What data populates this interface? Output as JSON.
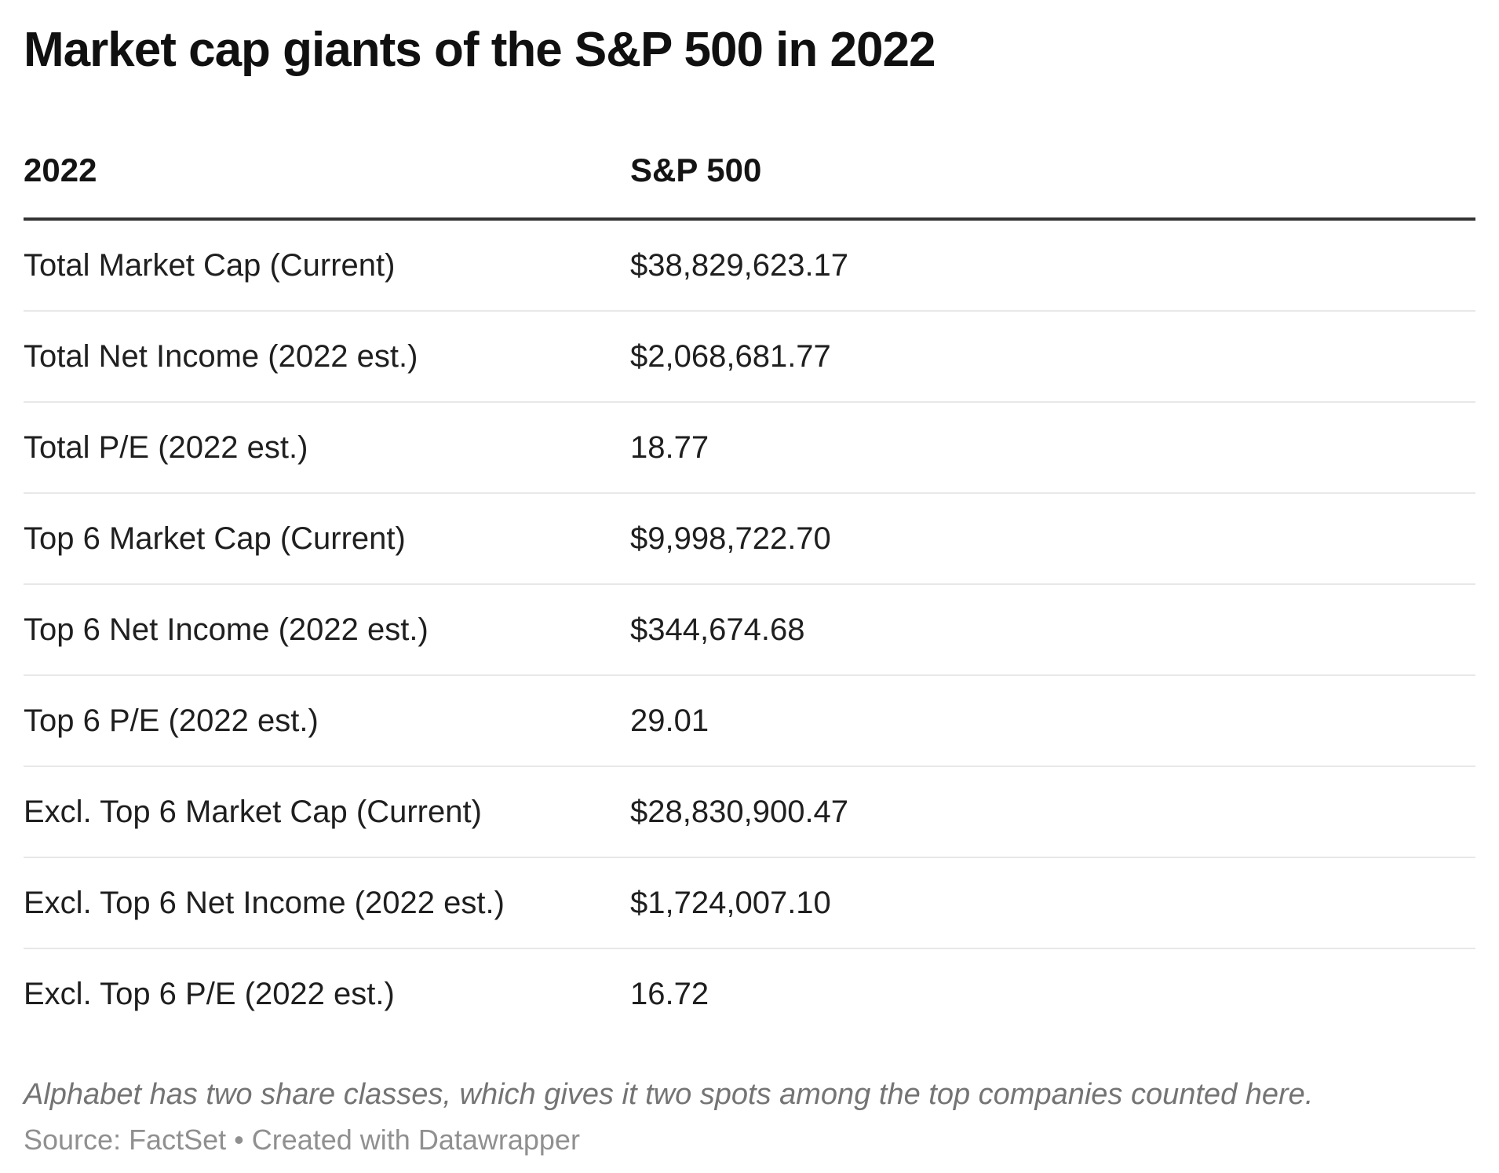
{
  "title": "Market cap giants of the S&P 500 in 2022",
  "table": {
    "columns": [
      "2022",
      "S&P 500"
    ],
    "rows": [
      {
        "label": "Total Market Cap (Current)",
        "value": "$38,829,623.17"
      },
      {
        "label": "Total Net Income (2022 est.)",
        "value": "$2,068,681.77"
      },
      {
        "label": "Total P/E (2022 est.)",
        "value": "18.77"
      },
      {
        "label": "Top 6 Market Cap (Current)",
        "value": "$9,998,722.70"
      },
      {
        "label": "Top 6 Net Income (2022 est.)",
        "value": "$344,674.68"
      },
      {
        "label": "Top 6 P/E (2022 est.)",
        "value": "29.01"
      },
      {
        "label": "Excl. Top 6 Market Cap (Current)",
        "value": "$28,830,900.47"
      },
      {
        "label": "Excl. Top 6 Net Income (2022 est.)",
        "value": "$1,724,007.10"
      },
      {
        "label": "Excl. Top 6 P/E (2022 est.)",
        "value": "16.72"
      }
    ]
  },
  "footer": {
    "note": "Alphabet has two share classes, which gives it two spots among the top companies counted here.",
    "source": "Source: FactSet • Created with Datawrapper"
  },
  "colors": {
    "title_text": "#101010",
    "header_text": "#141414",
    "body_text": "#1f1f1f",
    "header_rule": "#333333",
    "row_divider": "#e8e8e8",
    "note_text": "#747474",
    "source_text": "#909090",
    "background": "#ffffff"
  },
  "chart_data": {
    "type": "table",
    "title": "Market cap giants of the S&P 500 in 2022",
    "columns": [
      "2022",
      "S&P 500"
    ],
    "rows": [
      [
        "Total Market Cap (Current)",
        "$38,829,623.17"
      ],
      [
        "Total Net Income (2022 est.)",
        "$2,068,681.77"
      ],
      [
        "Total P/E (2022 est.)",
        "18.77"
      ],
      [
        "Top 6 Market Cap (Current)",
        "$9,998,722.70"
      ],
      [
        "Top 6 Net Income (2022 est.)",
        "$344,674.68"
      ],
      [
        "Top 6 P/E (2022 est.)",
        "29.01"
      ],
      [
        "Excl. Top 6 Market Cap (Current)",
        "$28,830,900.47"
      ],
      [
        "Excl. Top 6 Net Income (2022 est.)",
        "$1,724,007.10"
      ],
      [
        "Excl. Top 6 P/E (2022 est.)",
        "16.72"
      ]
    ],
    "note": "Alphabet has two share classes, which gives it two spots among the top companies counted here.",
    "source": "Source: FactSet • Created with Datawrapper",
    "layout": {
      "grid": "horizontal row dividers",
      "header_rule": "thick dark line under header",
      "value_column_align": "left"
    }
  }
}
